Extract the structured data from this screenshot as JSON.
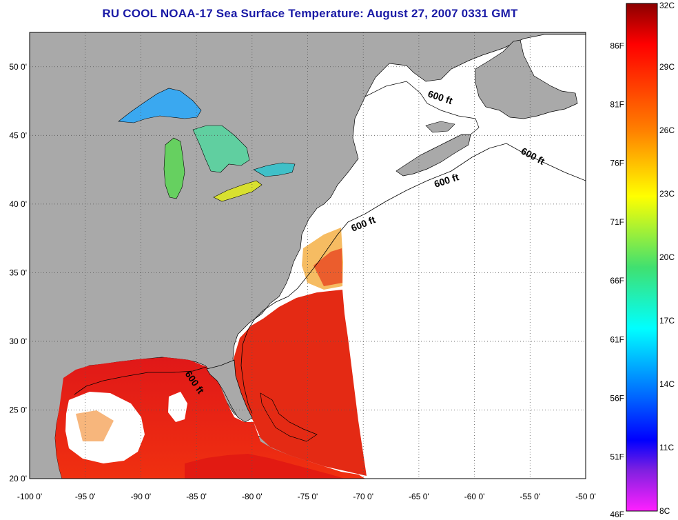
{
  "title": "RU COOL  NOAA-17  Sea Surface Temperature:  August 27, 2007 0331 GMT",
  "map": {
    "lon_range": [
      -100,
      -50
    ],
    "lat_range": [
      20,
      52.5
    ],
    "lon_ticks": [
      -100,
      -95,
      -90,
      -85,
      -80,
      -75,
      -70,
      -65,
      -60,
      -55,
      -50
    ],
    "lon_tick_labels": [
      "-100 0'",
      "-95 0'",
      "-90 0'",
      "-85 0'",
      "-80 0'",
      "-75 0'",
      "-70 0'",
      "-65 0'",
      "-60 0'",
      "-55 0'",
      "-50 0'"
    ],
    "lat_ticks": [
      20,
      25,
      30,
      35,
      40,
      45,
      50
    ],
    "lat_tick_labels": [
      "20 0'",
      "25 0'",
      "30 0'",
      "35 0'",
      "40 0'",
      "45 0'",
      "50 0'"
    ],
    "grid": "dotted",
    "isobath_labels": [
      "600 ft",
      "600 ft",
      "600 ft",
      "600 ft",
      "600 ft"
    ],
    "colors": {
      "land": "#a9a9a9",
      "no_data": "#ffffff",
      "coast": "#000000"
    }
  },
  "colorbar": {
    "celsius_labels": [
      "32C",
      "29C",
      "26C",
      "23C",
      "20C",
      "17C",
      "14C",
      "11C",
      "8C"
    ],
    "celsius_values": [
      32,
      29,
      26,
      23,
      20,
      17,
      14,
      11,
      8
    ],
    "fahrenheit_labels": [
      "86F",
      "81F",
      "76F",
      "71F",
      "66F",
      "61F",
      "56F",
      "51F",
      "46F"
    ],
    "fahrenheit_values": [
      86,
      81,
      76,
      71,
      66,
      61,
      56,
      51,
      46
    ],
    "range_c": [
      8,
      32
    ]
  }
}
